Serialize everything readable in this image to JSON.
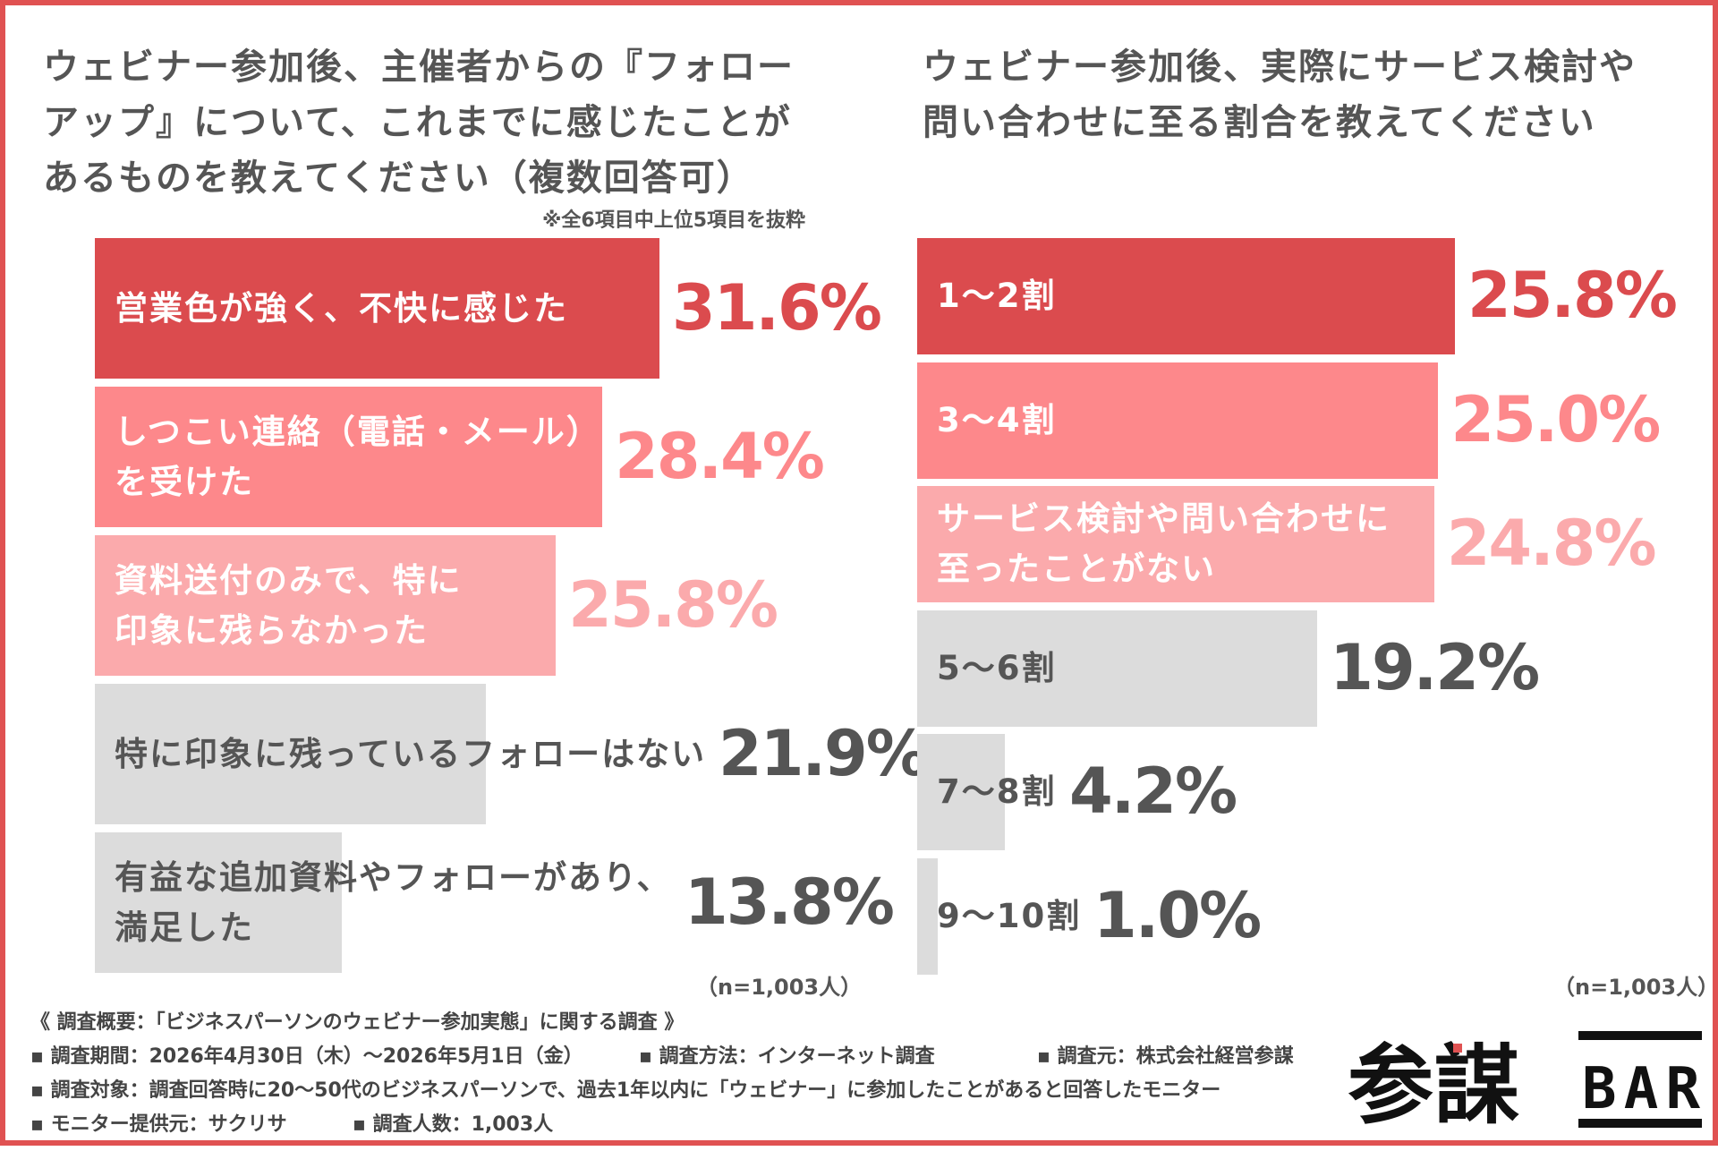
{
  "left_title": "ウェビナー参加後、主催者からの『フォロー\nアップ』について、これまでに感じたことが\nあるものを教えてください（複数回答可）",
  "left_note": "※全6項目中上位5項目を抜粋",
  "right_title": "ウェビナー参加後、実際にサービス検討や\n問い合わせに至る割合を教えてください",
  "n_label": "（n=1,003人）",
  "footer": {
    "heading": "《 調査概要：「ビジネスパーソンのウェビナー参加実態」に関する調査 》",
    "period": "▪ 調査期間：2026年4月30日（木）～2026年5月1日（金）",
    "method": "▪ 調査方法：インターネット調査",
    "organizer": "▪ 調査元：株式会社経営参謀",
    "target": "▪ 調査対象：調査回答時に20～50代のビジネスパーソンで、過去1年以内に「ウェビナー」に参加したことがあると回答したモニター",
    "provider": "▪ モニター提供元：サクリサ",
    "count": "▪ 調査人数：1,003人"
  },
  "logo": {
    "text_kanji": "参謀",
    "text_latin": "BAR"
  },
  "colors": {
    "top": "#db4b4e",
    "mid": "#fd888b",
    "light": "#fbaaac",
    "gray": "#dcdcdc",
    "frame": "#e05252"
  },
  "chart_data": [
    {
      "type": "bar",
      "orientation": "horizontal",
      "categories": [
        "営業色が強く、不快に感じた",
        "しつこい連絡（電話・メール）\nを受けた",
        "資料送付のみで、特に\n印象に残らなかった",
        "特に印象に残っているフォローはない",
        "有益な追加資料やフォローがあり、\n満足した"
      ],
      "values": [
        31.6,
        28.4,
        25.8,
        21.9,
        13.8
      ],
      "value_labels": [
        "31.6%",
        "28.4%",
        "25.8%",
        "21.9%",
        "13.8%"
      ],
      "xlim": [
        0,
        31.6
      ],
      "bar_colors": [
        "#db4b4e",
        "#fd888b",
        "#fbaaac",
        "#dcdcdc",
        "#dcdcdc"
      ],
      "label_colors": [
        "#ffffff",
        "#ffffff",
        "#ffffff",
        "#555555",
        "#555555"
      ],
      "value_colors": [
        "#db4b4e",
        "#fd888b",
        "#fbaaac",
        "#555555",
        "#555555"
      ]
    },
    {
      "type": "bar",
      "orientation": "horizontal",
      "categories": [
        "1～2割",
        "3～4割",
        "サービス検討や問い合わせに\n至ったことがない",
        "5～6割",
        "7～8割",
        "9～10割"
      ],
      "values": [
        25.8,
        25.0,
        24.8,
        19.2,
        4.2,
        1.0
      ],
      "value_labels": [
        "25.8%",
        "25.0%",
        "24.8%",
        "19.2%",
        "4.2%",
        "1.0%"
      ],
      "xlim": [
        0,
        25.8
      ],
      "bar_colors": [
        "#db4b4e",
        "#fd888b",
        "#fbaaac",
        "#dcdcdc",
        "#dcdcdc",
        "#dcdcdc"
      ],
      "label_colors": [
        "#ffffff",
        "#ffffff",
        "#ffffff",
        "#555555",
        "#555555",
        "#555555"
      ],
      "value_colors": [
        "#db4b4e",
        "#fd888b",
        "#fbaaac",
        "#555555",
        "#555555",
        "#555555"
      ]
    }
  ]
}
